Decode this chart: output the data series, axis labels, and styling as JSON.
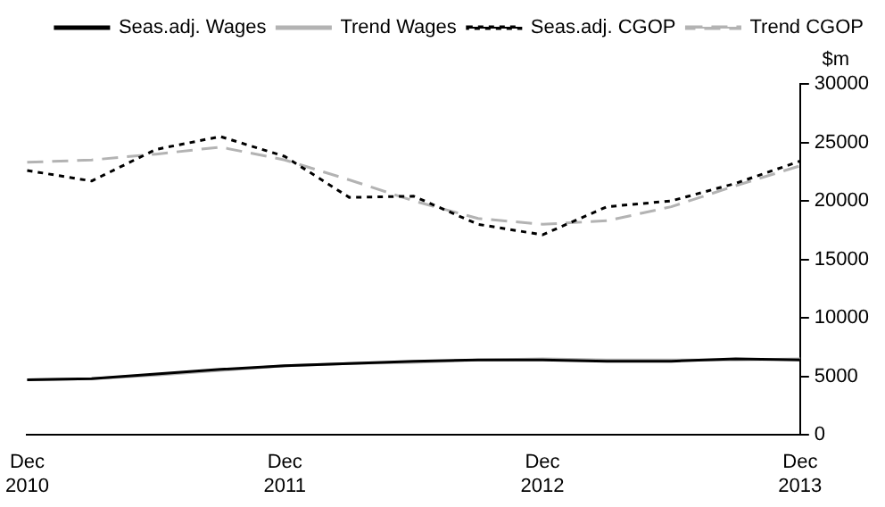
{
  "chart_data": {
    "type": "line",
    "ylabel": "$m",
    "categories": [
      "Dec 2010",
      null,
      null,
      null,
      "Dec 2011",
      null,
      null,
      null,
      "Dec 2012",
      null,
      null,
      null,
      "Dec 2013"
    ],
    "series": [
      {
        "name": "Seas.adj. Wages",
        "color": "#000000",
        "line_style": "solid",
        "values": [
          4700,
          4800,
          5200,
          5600,
          5900,
          6100,
          6300,
          6400,
          6400,
          6300,
          6300,
          6500,
          6400
        ]
      },
      {
        "name": "Trend Wages",
        "color": "#b3b3b3",
        "line_style": "solid",
        "values": [
          4700,
          4800,
          5100,
          5500,
          5900,
          6100,
          6200,
          6400,
          6500,
          6400,
          6400,
          6400,
          6500
        ]
      },
      {
        "name": "Seas.adj. CGOP",
        "color": "#000000",
        "line_style": "dotted",
        "values": [
          22600,
          21700,
          24400,
          25500,
          23800,
          20300,
          20400,
          18000,
          17100,
          19500,
          20000,
          21500,
          23400
        ]
      },
      {
        "name": "Trend CGOP",
        "color": "#b3b3b3",
        "line_style": "dashed",
        "values": [
          23300,
          23500,
          24000,
          24600,
          23500,
          21800,
          20000,
          18500,
          18000,
          18300,
          19500,
          21300,
          23000
        ]
      }
    ],
    "ylim": [
      0,
      30000
    ],
    "yticks": [
      0,
      5000,
      10000,
      15000,
      20000,
      25000,
      30000
    ],
    "grid": false,
    "legend": "top",
    "marker": "none"
  }
}
